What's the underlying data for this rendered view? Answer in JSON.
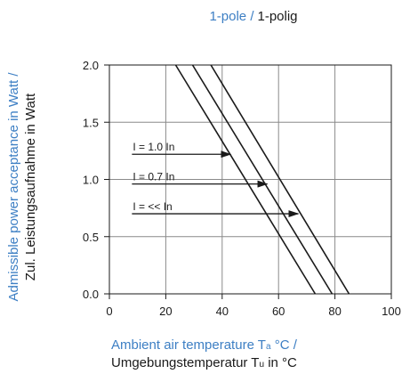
{
  "colors": {
    "accent": "#3d7fc4",
    "ink": "#1a1a1a",
    "grid": "#8a8a8a"
  },
  "title": {
    "part1": "1-pole /",
    "part2": "1-polig"
  },
  "xlabel": {
    "line1_main": "Ambient air temperature T",
    "line1_sub": "a",
    "line1_tail": " °C /",
    "line2_main": "Umgebungstemperatur T",
    "line2_sub": "u",
    "line2_tail": " in °C"
  },
  "ylabel": {
    "line1": "Admissible power acceptance in Watt /",
    "line2": "Zul. Leistungsaufnahme in Watt"
  },
  "chart_data": {
    "type": "line",
    "xlim": [
      0,
      100
    ],
    "ylim": [
      0.0,
      2.0
    ],
    "grid": true,
    "x_ticks": [
      0,
      20,
      40,
      60,
      80,
      100
    ],
    "x_tick_labels": [
      "0",
      "20",
      "40",
      "60",
      "80",
      "100"
    ],
    "y_ticks": [
      0.0,
      0.5,
      1.0,
      1.5,
      2.0
    ],
    "y_tick_labels": [
      "0.0",
      "0.5",
      "1.0",
      "1.5",
      "2.0"
    ],
    "series": [
      {
        "name": "I = 1.0 In",
        "x": [
          23.5,
          73
        ],
        "y": [
          2.0,
          0.0
        ]
      },
      {
        "name": "I = 0.7 In",
        "x": [
          29.5,
          79
        ],
        "y": [
          2.0,
          0.0
        ]
      },
      {
        "name": "I = << In",
        "x": [
          36,
          85
        ],
        "y": [
          2.0,
          0.0
        ]
      }
    ],
    "annotations": [
      {
        "text": "I = 1.0 In",
        "x_start": 8,
        "x_end": 43,
        "y": 1.22
      },
      {
        "text": "I = 0.7 In",
        "x_start": 8,
        "x_end": 56,
        "y": 0.96
      },
      {
        "text": "I = << In",
        "x_start": 8,
        "x_end": 67,
        "y": 0.7
      }
    ]
  }
}
